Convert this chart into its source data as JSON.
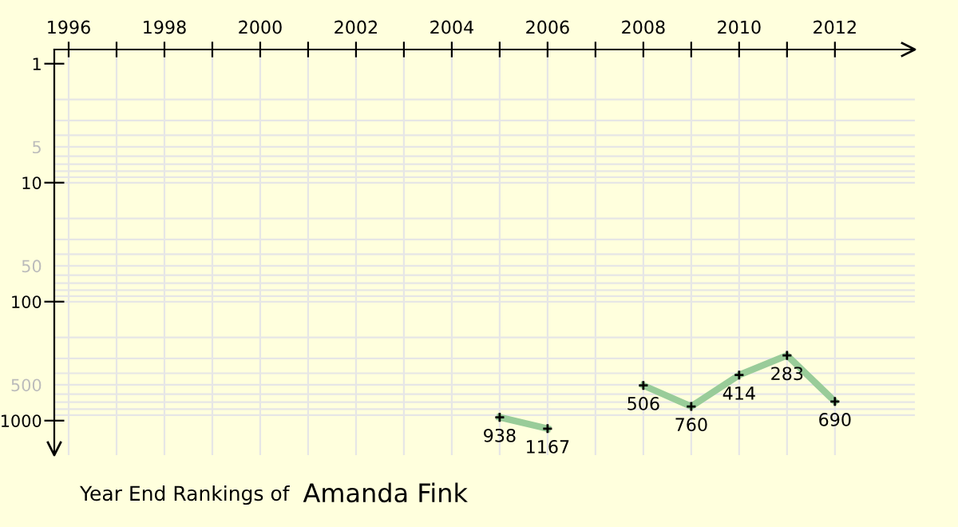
{
  "chart_data": {
    "type": "line",
    "title": "Year End Rankings of",
    "subtitle": "Amanda Fink",
    "x": [
      2005,
      2006,
      2007,
      2008,
      2009,
      2010,
      2011,
      2012
    ],
    "series": [
      {
        "color": "#99cc99",
        "values": [
          938,
          1167,
          null,
          506,
          760,
          414,
          283,
          690
        ]
      }
    ],
    "log": "y",
    "xlim": [
      1995.7,
      2013.67
    ],
    "ylim": [
      1950,
      0.76
    ],
    "xticks": [
      1996,
      {
        "value": 1997,
        "label": null
      },
      1998,
      {
        "value": 1999,
        "label": null
      },
      2000,
      {
        "value": 2001,
        "label": null
      },
      2002,
      {
        "value": 2003,
        "label": null
      },
      2004,
      {
        "value": 2005,
        "label": null
      },
      2006,
      {
        "value": 2007,
        "label": null
      },
      2008,
      {
        "value": 2009,
        "label": null
      },
      2010,
      {
        "value": 2011,
        "label": null
      },
      2012
    ],
    "yticks": [
      1,
      5,
      10,
      50,
      100,
      500,
      1000
    ],
    "grid": true,
    "data_labels": true,
    "marker": "cross",
    "line_style": "solid"
  }
}
